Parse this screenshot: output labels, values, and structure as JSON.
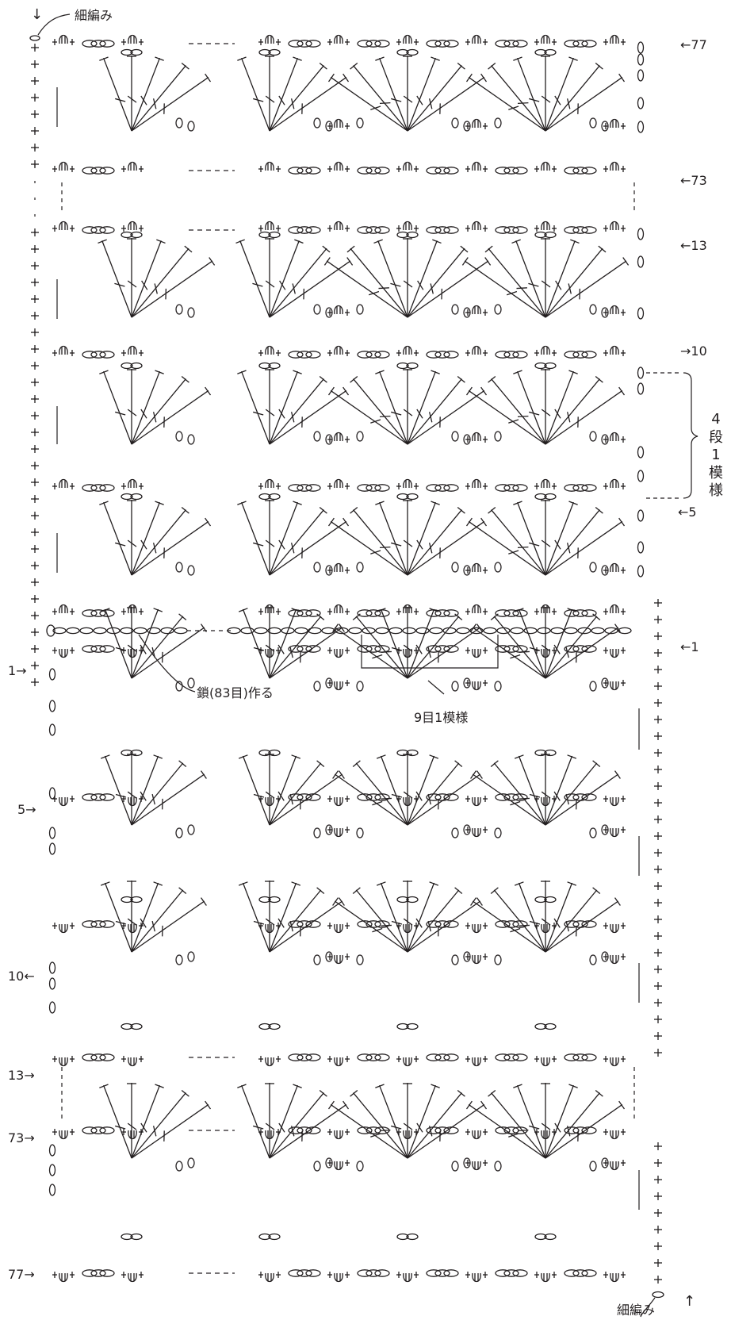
{
  "labels": {
    "edge_top": "細編み",
    "edge_bottom": "細編み",
    "foundation": "鎖(83目)作る",
    "repeat": "9目1模様",
    "pattern_repeat": [
      "4",
      "段",
      "1",
      "模",
      "様"
    ]
  },
  "rows_upper_right": [
    "←77",
    "←73",
    "←13",
    "→10",
    "←5",
    "←1"
  ],
  "rows_lower_left": [
    "1→",
    "5→",
    "10←",
    "13→",
    "73→",
    "77→"
  ],
  "glyphs": {
    "arrow_down": "↓",
    "arrow_up": "↑"
  },
  "colors": {
    "ink": "#231f20",
    "background": "#ffffff"
  }
}
